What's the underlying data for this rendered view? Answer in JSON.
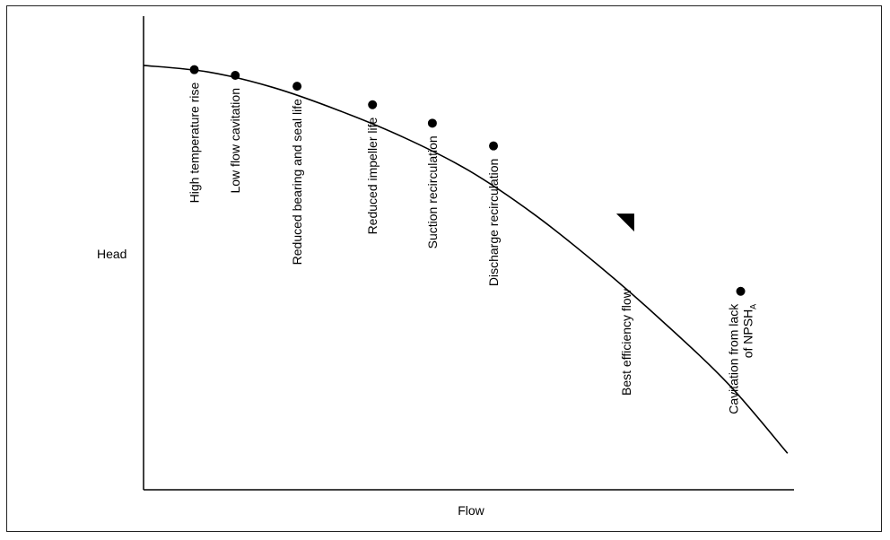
{
  "chart_data": {
    "type": "line",
    "title": "",
    "xlabel": "Flow",
    "ylabel": "Head",
    "grid": false,
    "legend": "none",
    "xlim": [
      0,
      100
    ],
    "ylim": [
      0,
      100
    ],
    "axis_ticks": "none",
    "series": [
      {
        "x": [
          0,
          10,
          20,
          30,
          40,
          50,
          60,
          70,
          80,
          90,
          99
        ],
        "y": [
          89.6,
          88.2,
          84.9,
          80.1,
          74.4,
          67.4,
          58.2,
          47.3,
          35.3,
          22.2,
          7.7
        ]
      }
    ],
    "annotations": [
      {
        "label": "High temperature rise",
        "x": 7.8,
        "y": 88.7,
        "marker": "dot"
      },
      {
        "label": "Low flow cavitation",
        "x": 14.1,
        "y": 87.5,
        "marker": "dot"
      },
      {
        "label": "Reduced bearing and seal life",
        "x": 23.6,
        "y": 85.2,
        "marker": "dot"
      },
      {
        "label": "Reduced impeller life",
        "x": 35.2,
        "y": 81.3,
        "marker": "dot"
      },
      {
        "label": "Suction recirculation",
        "x": 44.4,
        "y": 77.4,
        "marker": "dot"
      },
      {
        "label": "Discharge recirculation",
        "x": 53.8,
        "y": 72.6,
        "marker": "dot"
      },
      {
        "label": "Best efficiency flow",
        "x": 74.2,
        "y": 58.3,
        "marker": "triangle"
      },
      {
        "label": "Cavitation from lack",
        "label_line2": "of NPSH",
        "label_subscript": "A",
        "x": 91.8,
        "y": 41.9,
        "marker": "dot"
      }
    ]
  }
}
